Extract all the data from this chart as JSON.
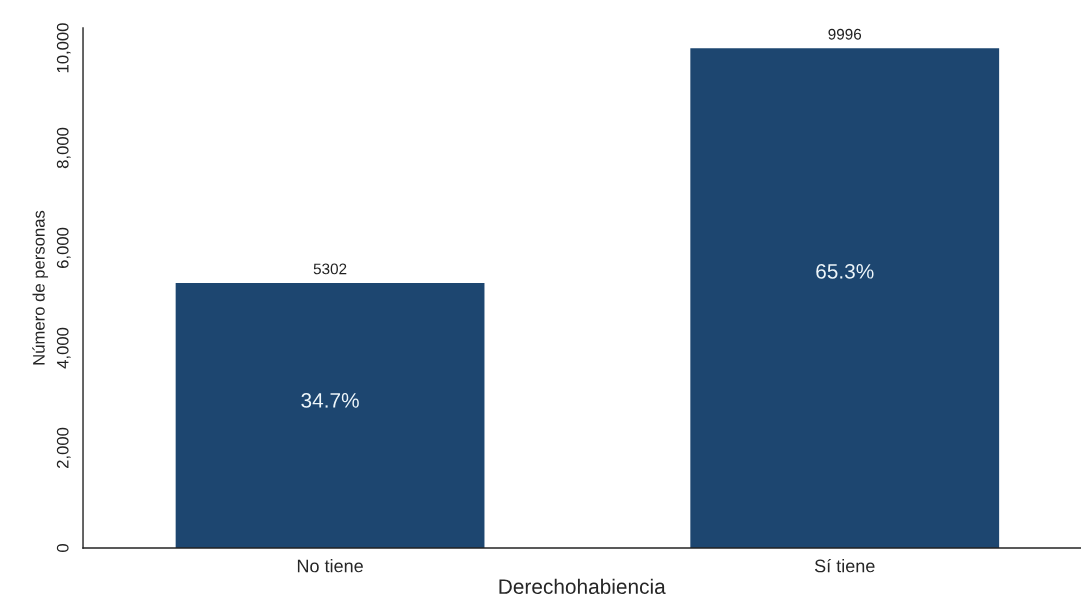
{
  "chart_data": {
    "type": "bar",
    "xlabel": "Derechohabiencia",
    "ylabel": "Número de personas",
    "categories": [
      "No tiene",
      "Sí tiene"
    ],
    "values": [
      5302,
      9996
    ],
    "color": "#1d4670",
    "ylim": [
      0,
      10400
    ],
    "yticks": [
      0,
      {
        "value": 2000,
        "label": "2,000"
      },
      {
        "value": 4000,
        "label": "4,000"
      },
      {
        "value": 6000,
        "label": "6,000"
      },
      {
        "value": 8000,
        "label": "8,000"
      },
      {
        "value": 10000,
        "label": "10,000"
      }
    ],
    "data_labels": true,
    "grid": false,
    "legend": false,
    "annotations": [
      "34.7%",
      "65.3%"
    ]
  }
}
